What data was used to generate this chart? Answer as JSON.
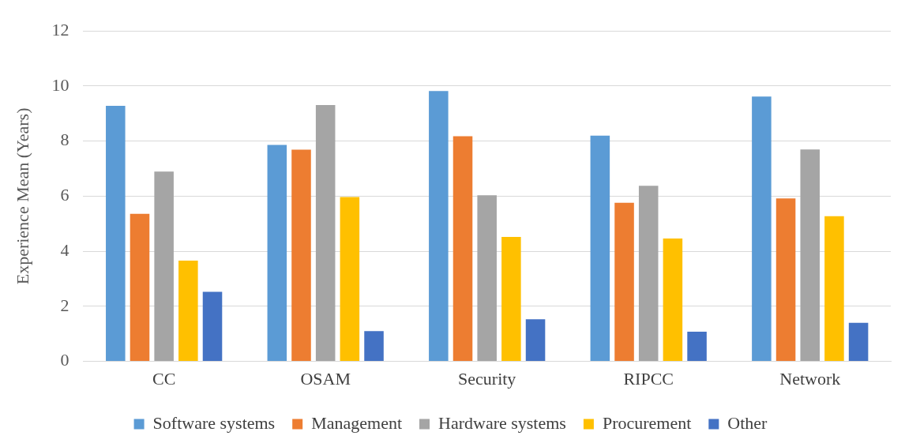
{
  "chart_data": {
    "type": "bar",
    "ylabel": "Experience Mean (Years)",
    "categories": [
      "CC",
      "OSAM",
      "Security",
      "RIPCC",
      "Network"
    ],
    "series": [
      {
        "name": "Software systems",
        "color": "#5b9bd5",
        "values": [
          9.28,
          7.86,
          9.82,
          8.2,
          9.62
        ]
      },
      {
        "name": "Management",
        "color": "#ed7d31",
        "values": [
          5.36,
          7.69,
          8.18,
          5.76,
          5.92
        ]
      },
      {
        "name": "Hardware systems",
        "color": "#a5a5a5",
        "values": [
          6.89,
          9.31,
          6.03,
          6.38,
          7.7
        ]
      },
      {
        "name": "Procurement",
        "color": "#ffc000",
        "values": [
          3.66,
          5.97,
          4.52,
          4.46,
          5.27
        ]
      },
      {
        "name": "Other",
        "color": "#4472c4",
        "values": [
          2.53,
          1.1,
          1.53,
          1.08,
          1.4
        ]
      }
    ],
    "ylim": [
      0,
      12
    ],
    "yticks": [
      0,
      2,
      4,
      6,
      8,
      10,
      12
    ],
    "grid": "y",
    "legend": "bottom"
  }
}
